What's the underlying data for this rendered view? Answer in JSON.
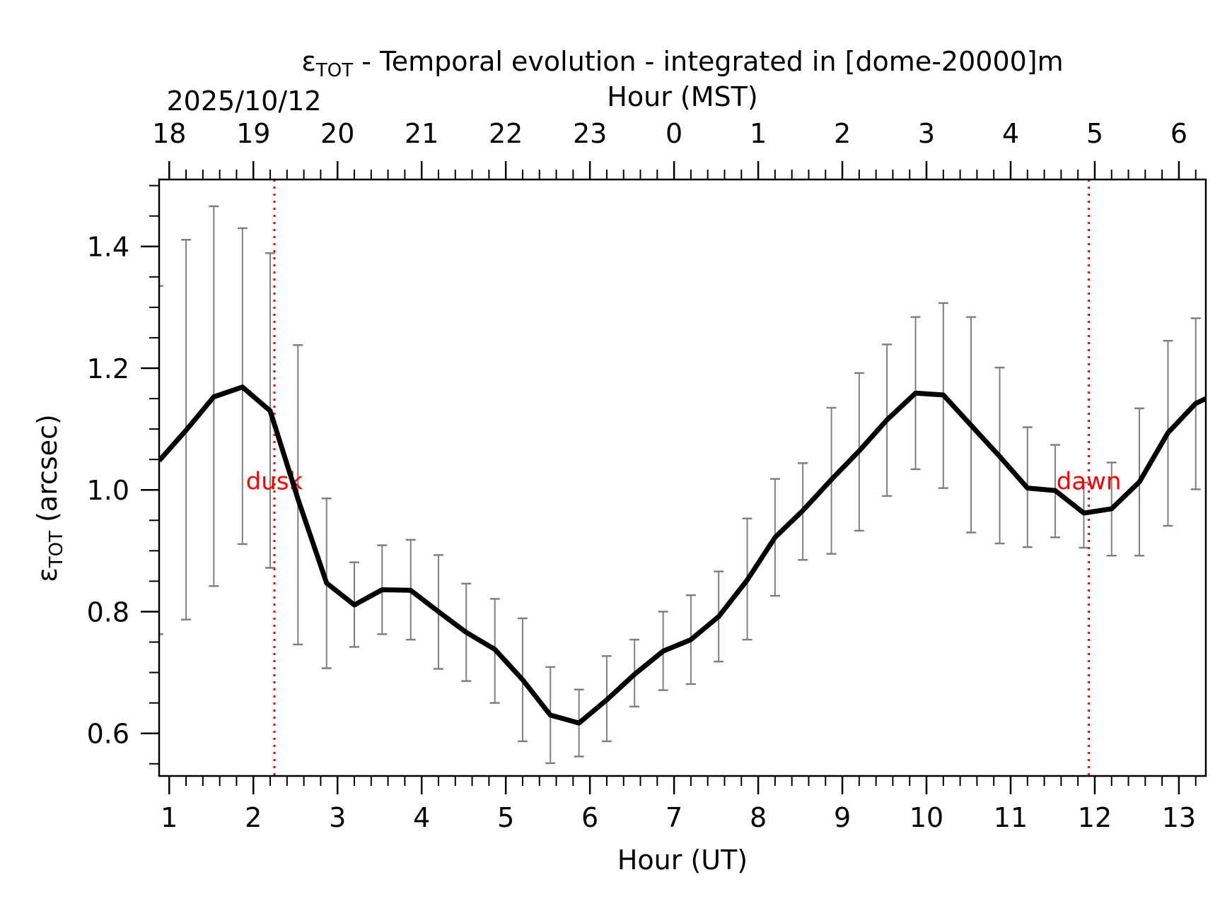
{
  "chart_data": {
    "type": "line",
    "title_symbol": "ε",
    "title_subscript": "TOT",
    "title_rest": " - Temporal evolution - integrated in [dome-20000]m",
    "date_label": "2025/10/12",
    "xlabel": "Hour (UT)",
    "x2label": "Hour (MST)",
    "ylabel_symbol": "ε",
    "ylabel_subscript": "TOT",
    "ylabel_rest": " (arcsec)",
    "xlim": [
      0.88,
      13.32
    ],
    "ylim": [
      0.53,
      1.51
    ],
    "x_ticks": [
      1,
      2,
      3,
      4,
      5,
      6,
      7,
      8,
      9,
      10,
      11,
      12,
      13
    ],
    "x_tick_labels": [
      "1",
      "2",
      "3",
      "4",
      "5",
      "6",
      "7",
      "8",
      "9",
      "10",
      "11",
      "12",
      "13"
    ],
    "x2_tick_labels": [
      "18",
      "19",
      "20",
      "21",
      "22",
      "23",
      "0",
      "1",
      "2",
      "3",
      "4",
      "5",
      "6"
    ],
    "y_ticks": [
      0.6,
      0.8,
      1.0,
      1.2,
      1.4
    ],
    "y_tick_labels": [
      "0.6",
      "0.8",
      "1.0",
      "1.2",
      "1.4"
    ],
    "x": [
      0.88,
      1.2,
      1.53,
      1.87,
      2.2,
      2.53,
      2.87,
      3.2,
      3.53,
      3.87,
      4.2,
      4.53,
      4.87,
      5.2,
      5.53,
      5.87,
      6.2,
      6.53,
      6.87,
      7.2,
      7.53,
      7.87,
      8.2,
      8.53,
      8.87,
      9.2,
      9.53,
      9.87,
      10.2,
      10.53,
      10.87,
      11.2,
      11.53,
      11.87,
      12.2,
      12.53,
      12.87,
      13.2,
      13.32
    ],
    "y": [
      1.048,
      1.098,
      1.153,
      1.169,
      1.13,
      0.985,
      0.847,
      0.811,
      0.836,
      0.835,
      0.8,
      0.766,
      0.738,
      0.688,
      0.63,
      0.617,
      0.655,
      0.697,
      0.735,
      0.754,
      0.792,
      0.852,
      0.922,
      0.966,
      1.017,
      1.064,
      1.115,
      1.159,
      1.156,
      1.106,
      1.055,
      1.003,
      0.999,
      0.962,
      0.969,
      1.013,
      1.094,
      1.142,
      1.15
    ],
    "err_x": [
      0.87,
      1.2,
      1.53,
      1.87,
      2.2,
      2.53,
      2.87,
      3.2,
      3.53,
      3.87,
      4.2,
      4.53,
      4.87,
      5.2,
      5.53,
      5.87,
      6.2,
      6.53,
      6.87,
      7.2,
      7.53,
      7.87,
      8.2,
      8.53,
      8.87,
      9.2,
      9.53,
      9.87,
      10.2,
      10.53,
      10.87,
      11.2,
      11.53,
      11.87,
      12.2,
      12.53,
      12.87,
      13.2
    ],
    "err_low": [
      0.763,
      0.787,
      0.842,
      0.911,
      0.872,
      0.746,
      0.707,
      0.742,
      0.763,
      0.754,
      0.706,
      0.686,
      0.65,
      0.587,
      0.551,
      0.562,
      0.587,
      0.644,
      0.671,
      0.681,
      0.718,
      0.754,
      0.826,
      0.885,
      0.895,
      0.933,
      0.99,
      1.034,
      1.003,
      0.93,
      0.912,
      0.906,
      0.922,
      0.905,
      0.892,
      0.892,
      0.941,
      1.001
    ],
    "err_high": [
      1.335,
      1.411,
      1.466,
      1.43,
      1.389,
      1.238,
      0.986,
      0.881,
      0.909,
      0.918,
      0.893,
      0.846,
      0.821,
      0.789,
      0.709,
      0.672,
      0.727,
      0.754,
      0.8,
      0.827,
      0.866,
      0.953,
      1.018,
      1.044,
      1.135,
      1.192,
      1.239,
      1.284,
      1.307,
      1.284,
      1.201,
      1.103,
      1.074,
      1.012,
      1.045,
      1.134,
      1.245,
      1.282
    ],
    "vlines": [
      {
        "label": "dusk",
        "x": 2.25
      },
      {
        "label": "dawn",
        "x": 11.93
      }
    ],
    "colors": {
      "line": "#000000",
      "errorbar": "#808080",
      "vline": "#ff0000"
    }
  }
}
